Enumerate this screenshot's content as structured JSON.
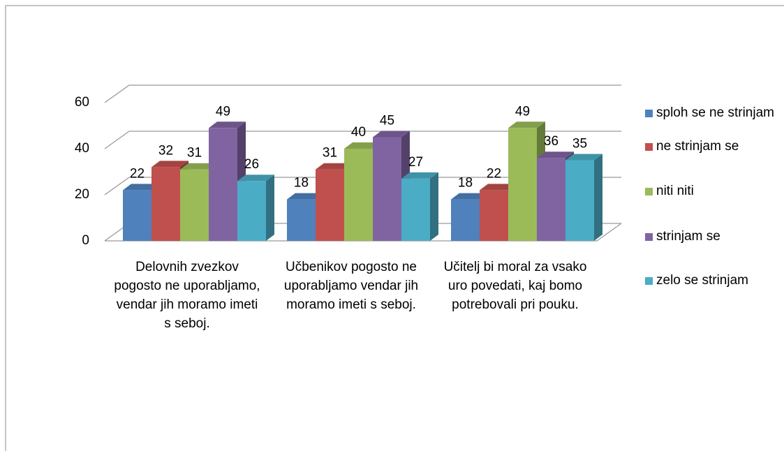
{
  "chart_data": {
    "type": "bar3d",
    "categories": [
      "Delovnih zvezkov pogosto ne uporabljamo, vendar jih moramo imeti s seboj.",
      "Učbenikov pogosto ne uporabljamo vendar jih moramo imeti s seboj.",
      "Učitelj bi moral za vsako uro povedati, kaj bomo potrebovali pri pouku."
    ],
    "series": [
      {
        "name": "sploh se ne strinjam",
        "color": "#4f81bd",
        "values": [
          22,
          18,
          18
        ]
      },
      {
        "name": "ne strinjam se",
        "color": "#c0504d",
        "values": [
          32,
          31,
          22
        ]
      },
      {
        "name": "niti niti",
        "color": "#9bbb59",
        "values": [
          31,
          40,
          49
        ]
      },
      {
        "name": "strinjam se",
        "color": "#8064a2",
        "values": [
          49,
          45,
          36
        ]
      },
      {
        "name": "zelo se strinjam",
        "color": "#4bacc6",
        "values": [
          26,
          27,
          35
        ]
      }
    ],
    "ylim": [
      0,
      60
    ],
    "yticks": [
      0,
      20,
      40,
      60
    ],
    "grid": true,
    "legend": "right"
  }
}
